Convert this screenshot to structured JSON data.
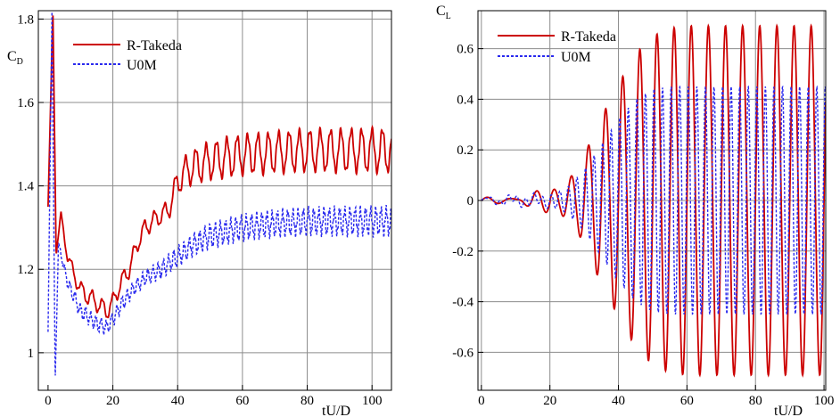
{
  "colors": {
    "r_takeda": "#cc0000",
    "u0m": "#2a2aee",
    "grid": "#8c8c8c",
    "axis": "#000000"
  },
  "chart_data": [
    {
      "id": "cd",
      "type": "line",
      "title": "",
      "xlabel": "tU/D",
      "ylabel": "C",
      "ylabel_sub": "D",
      "xlim": [
        -3,
        106
      ],
      "ylim": [
        0.91,
        1.82
      ],
      "xticks": [
        0,
        20,
        40,
        60,
        80,
        100
      ],
      "yticks": [
        1,
        1.2,
        1.4,
        1.6,
        1.8
      ],
      "ytick_labels": [
        "1",
        "1.2",
        "1.4",
        "1.6",
        "1.8"
      ],
      "grid": true,
      "legend_position": "top-center",
      "series": [
        {
          "name": "R-Takeda",
          "style": "solid",
          "color": "#cc0000",
          "base": [
            [
              0,
              1.35
            ],
            [
              1.5,
              1.82
            ],
            [
              2.5,
              1.24
            ],
            [
              4,
              1.33
            ],
            [
              6,
              1.23
            ],
            [
              10,
              1.15
            ],
            [
              15,
              1.12
            ],
            [
              18,
              1.1
            ],
            [
              20,
              1.12
            ],
            [
              22,
              1.16
            ],
            [
              25,
              1.2
            ],
            [
              28,
              1.27
            ],
            [
              30,
              1.3
            ],
            [
              33,
              1.32
            ],
            [
              37,
              1.34
            ],
            [
              40,
              1.41
            ],
            [
              43,
              1.44
            ],
            [
              50,
              1.46
            ],
            [
              60,
              1.475
            ],
            [
              70,
              1.48
            ],
            [
              80,
              1.485
            ],
            [
              90,
              1.485
            ],
            [
              100,
              1.485
            ],
            [
              105,
              1.485
            ]
          ],
          "osc": [
            [
              0,
              0.0
            ],
            [
              10,
              0.02
            ],
            [
              35,
              0.02
            ],
            [
              40,
              0.03
            ],
            [
              45,
              0.04
            ],
            [
              55,
              0.045
            ],
            [
              105,
              0.05
            ]
          ],
          "period": 3.2
        },
        {
          "name": "U0M",
          "style": "dashed",
          "color": "#2a2aee",
          "base": [
            [
              0,
              1.05
            ],
            [
              1.2,
              1.82
            ],
            [
              2.2,
              0.93
            ],
            [
              3.2,
              1.26
            ],
            [
              6,
              1.17
            ],
            [
              10,
              1.1
            ],
            [
              15,
              1.07
            ],
            [
              18,
              1.06
            ],
            [
              20,
              1.08
            ],
            [
              23,
              1.12
            ],
            [
              26,
              1.15
            ],
            [
              30,
              1.18
            ],
            [
              35,
              1.2
            ],
            [
              40,
              1.23
            ],
            [
              45,
              1.26
            ],
            [
              50,
              1.28
            ],
            [
              60,
              1.3
            ],
            [
              70,
              1.31
            ],
            [
              80,
              1.315
            ],
            [
              90,
              1.315
            ],
            [
              100,
              1.315
            ],
            [
              105,
              1.315
            ]
          ],
          "osc": [
            [
              0,
              0.0
            ],
            [
              8,
              0.015
            ],
            [
              30,
              0.015
            ],
            [
              40,
              0.02
            ],
            [
              50,
              0.025
            ],
            [
              105,
              0.03
            ]
          ],
          "period": 1.6
        }
      ]
    },
    {
      "id": "cl",
      "type": "line",
      "title": "",
      "xlabel": "tU/D",
      "ylabel": "C",
      "ylabel_sub": "L",
      "xlim": [
        -1,
        100.5
      ],
      "ylim": [
        -0.75,
        0.75
      ],
      "xticks": [
        0,
        20,
        40,
        60,
        80,
        100
      ],
      "yticks": [
        -0.6,
        -0.4,
        -0.2,
        0,
        0.2,
        0.4,
        0.6
      ],
      "ytick_labels": [
        "-0.6",
        "-0.4",
        "-0.2",
        "0",
        "0.2",
        "0.4",
        "0.6"
      ],
      "grid": true,
      "legend_position": "top-left",
      "series": [
        {
          "name": "R-Takeda",
          "style": "solid",
          "color": "#cc0000",
          "amp": [
            [
              0,
              0.0
            ],
            [
              10,
              0.005
            ],
            [
              17,
              0.03
            ],
            [
              20,
              0.04
            ],
            [
              23,
              0.05
            ],
            [
              25,
              0.08
            ],
            [
              28,
              0.12
            ],
            [
              30,
              0.18
            ],
            [
              35,
              0.33
            ],
            [
              40,
              0.46
            ],
            [
              45,
              0.58
            ],
            [
              50,
              0.65
            ],
            [
              55,
              0.68
            ],
            [
              60,
              0.69
            ],
            [
              100,
              0.69
            ]
          ],
          "period": 5.0,
          "phase": 0.0
        },
        {
          "name": "U0M",
          "style": "dashed",
          "color": "#2a2aee",
          "amp": [
            [
              0,
              0.0
            ],
            [
              5,
              0.01
            ],
            [
              15,
              0.02
            ],
            [
              20,
              0.02
            ],
            [
              25,
              0.05
            ],
            [
              30,
              0.12
            ],
            [
              35,
              0.22
            ],
            [
              40,
              0.32
            ],
            [
              45,
              0.4
            ],
            [
              50,
              0.44
            ],
            [
              55,
              0.45
            ],
            [
              100,
              0.45
            ]
          ],
          "period": 2.5,
          "phase": 0.6
        }
      ]
    }
  ]
}
